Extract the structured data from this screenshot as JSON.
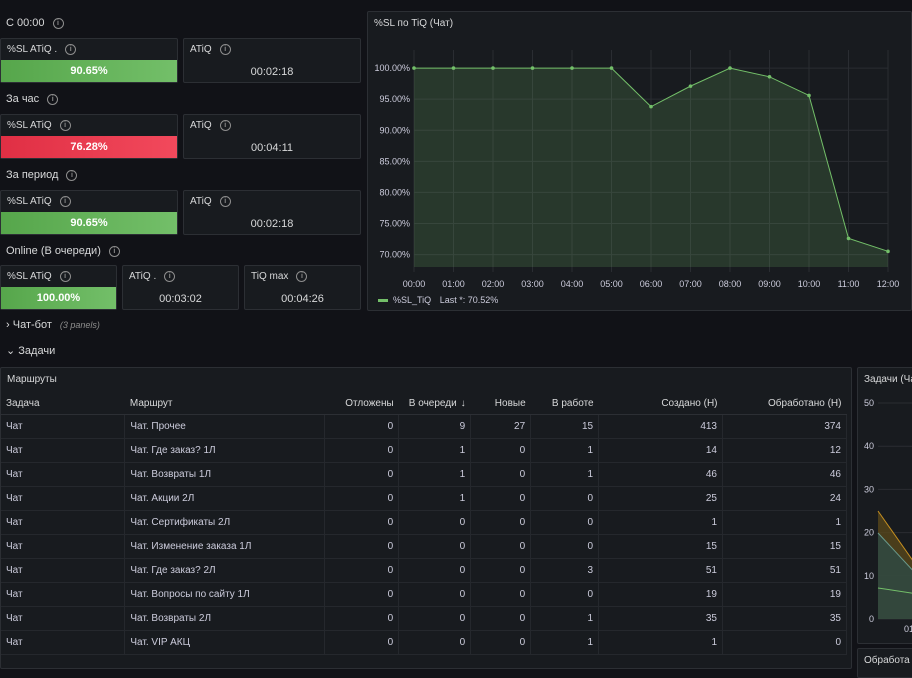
{
  "section_since_midnight": {
    "title": "С 00:00",
    "sl_title": "%SL ATiQ .",
    "sl_value": "90.65%",
    "atiq_title": "ATiQ",
    "atiq_value": "00:02:18"
  },
  "section_hour": {
    "title": "За час",
    "sl_title": "%SL ATiQ",
    "sl_value": "76.28%",
    "atiq_title": "ATiQ",
    "atiq_value": "00:04:11"
  },
  "section_period": {
    "title": "За период",
    "sl_title": "%SL ATiQ",
    "sl_value": "90.65%",
    "atiq_title": "ATiQ",
    "atiq_value": "00:02:18"
  },
  "section_online": {
    "title": "Online (В очереди)",
    "sl_title": "%SL ATiQ",
    "sl_value": "100.00%",
    "atiq_title": "ATiQ .",
    "atiq_value": "00:03:02",
    "tiq_title": "TiQ max",
    "tiq_value": "00:04:26"
  },
  "colors": {
    "good": "#73bf69",
    "bad": "#f2495c",
    "panel_bg": "#181b1f",
    "line": "#73bf69"
  },
  "chart_panel": {
    "title": "%SL по TiQ (Чат)",
    "legend": "%SL_TiQ",
    "legend_last": "Last *: 70.52%"
  },
  "chart_data": {
    "type": "area",
    "x": [
      "00:00",
      "01:00",
      "02:00",
      "03:00",
      "04:00",
      "05:00",
      "06:00",
      "07:00",
      "08:00",
      "09:00",
      "10:00",
      "11:00",
      "12:00"
    ],
    "series": [
      {
        "name": "%SL_TiQ",
        "values": [
          100,
          100,
          100,
          100,
          100,
          100,
          93.8,
          97.1,
          100,
          98.6,
          95.6,
          72.6,
          70.52
        ]
      }
    ],
    "y_ticks": [
      "100.00%",
      "95.00%",
      "90.00%",
      "85.00%",
      "80.00%",
      "75.00%",
      "70.00%"
    ],
    "ylim": [
      68,
      100.5
    ],
    "grid": true,
    "legend": "bottom-left"
  },
  "chatbot_row": {
    "title": "Чат-бот",
    "sub": "(3 panels)"
  },
  "tasks_row": {
    "title": "Задачи"
  },
  "routes_panel": {
    "title": "Маршруты",
    "headers": [
      "Задача",
      "Маршрут",
      "Отложены",
      "В очереди",
      "Новые",
      "В работе",
      "Создано (Н)",
      "Обработано (Н)"
    ],
    "sort_icon": "↓",
    "rows": [
      [
        "Чат",
        "Чат. Прочее",
        "0",
        "9",
        "27",
        "15",
        "413",
        "374"
      ],
      [
        "Чат",
        "Чат. Где заказ? 1Л",
        "0",
        "1",
        "0",
        "1",
        "14",
        "12"
      ],
      [
        "Чат",
        "Чат. Возвраты 1Л",
        "0",
        "1",
        "0",
        "1",
        "46",
        "46"
      ],
      [
        "Чат",
        "Чат. Акции 2Л",
        "0",
        "1",
        "0",
        "0",
        "25",
        "24"
      ],
      [
        "Чат",
        "Чат. Сертификаты 2Л",
        "0",
        "0",
        "0",
        "0",
        "1",
        "1"
      ],
      [
        "Чат",
        "Чат. Изменение заказа 1Л",
        "0",
        "0",
        "0",
        "0",
        "15",
        "15"
      ],
      [
        "Чат",
        "Чат. Где заказ? 2Л",
        "0",
        "0",
        "0",
        "3",
        "51",
        "51"
      ],
      [
        "Чат",
        "Чат. Вопросы по сайту 1Л",
        "0",
        "0",
        "0",
        "0",
        "19",
        "19"
      ],
      [
        "Чат",
        "Чат. Возвраты 2Л",
        "0",
        "0",
        "0",
        "1",
        "35",
        "35"
      ],
      [
        "Чат",
        "Чат. VIP АКЦ",
        "0",
        "0",
        "0",
        "1",
        "1",
        "0"
      ]
    ]
  },
  "right_panel": {
    "title": "Задачи (Ча",
    "y_ticks": [
      "50",
      "40",
      "30",
      "20",
      "10",
      "0"
    ],
    "x_tick": "01:"
  },
  "bottom_right_panel": {
    "title": "Обработа"
  }
}
